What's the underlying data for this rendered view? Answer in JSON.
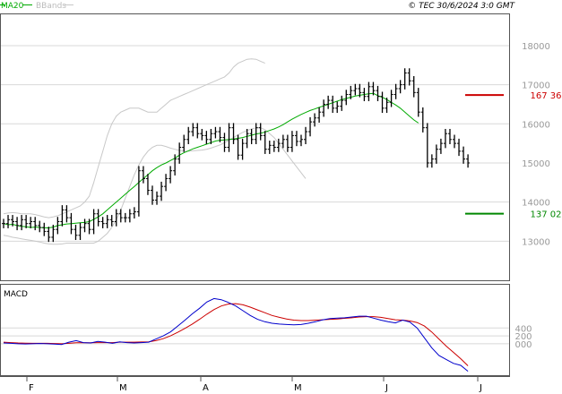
{
  "header": {
    "legend_ma": "MA20",
    "legend_bb": "BBands",
    "copyright": "© TEC 30/6/2024 3:0 GMT"
  },
  "colors": {
    "ma": "#00aa00",
    "bands": "#c8c8c8",
    "bar": "#000000",
    "resistance": "#cc0000",
    "support": "#008800",
    "macd": "#0000cc",
    "signal": "#cc0000",
    "grid": "#d8d8d8"
  },
  "chart_data": [
    {
      "type": "ohlc",
      "panel": "price",
      "ylim": [
        12000,
        18800
      ],
      "y_ticks": [
        "18000",
        "17000",
        "16000",
        "15000",
        "14000",
        "13000"
      ],
      "y_tick_values": [
        18000,
        17000,
        16000,
        15000,
        14000,
        13000
      ],
      "x_ticks": [
        "F",
        "M",
        "A",
        "M",
        "J",
        "J"
      ],
      "levels": [
        {
          "label": "167 36",
          "value": 16736,
          "color": "resistance"
        },
        {
          "label": "137 02",
          "value": 13702,
          "color": "support"
        }
      ],
      "closes": [
        13450,
        13550,
        13500,
        13400,
        13550,
        13450,
        13500,
        13400,
        13350,
        13250,
        13100,
        13300,
        13500,
        13800,
        13600,
        13300,
        13150,
        13350,
        13450,
        13300,
        13700,
        13500,
        13450,
        13550,
        13500,
        13700,
        13600,
        13600,
        13700,
        13750,
        14800,
        14600,
        14300,
        14050,
        14150,
        14400,
        14600,
        14800,
        15100,
        15400,
        15600,
        15800,
        15900,
        15750,
        15700,
        15600,
        15750,
        15800,
        15650,
        15400,
        15900,
        15600,
        15200,
        15500,
        15750,
        15600,
        15900,
        15700,
        15350,
        15450,
        15400,
        15500,
        15600,
        15400,
        15700,
        15550,
        15600,
        15800,
        16050,
        16150,
        16300,
        16500,
        16600,
        16400,
        16450,
        16600,
        16750,
        16850,
        16900,
        16800,
        16700,
        16950,
        16850,
        16700,
        16400,
        16550,
        16750,
        16900,
        17000,
        17300,
        17100,
        16800,
        16300,
        15900,
        15000,
        15100,
        15350,
        15500,
        15750,
        15600,
        15500,
        15300,
        15100,
        15000
      ],
      "ma20": [
        13450,
        13420,
        13430,
        13400,
        13380,
        13370,
        13350,
        13360,
        13350,
        13340,
        13340,
        13360,
        13400,
        13420,
        13440,
        13450,
        13460,
        13470,
        13480,
        13500,
        13560,
        13620,
        13700,
        13800,
        13900,
        14000,
        14100,
        14200,
        14300,
        14400,
        14500,
        14600,
        14700,
        14800,
        14880,
        14950,
        15000,
        15060,
        15120,
        15200,
        15260,
        15310,
        15360,
        15400,
        15440,
        15480,
        15520,
        15560,
        15580,
        15590,
        15600,
        15610,
        15630,
        15650,
        15680,
        15710,
        15740,
        15760,
        15790,
        15830,
        15870,
        15920,
        15980,
        16050,
        16120,
        16180,
        16240,
        16290,
        16340,
        16380,
        16420,
        16460,
        16500,
        16540,
        16580,
        16620,
        16650,
        16680,
        16710,
        16730,
        16750,
        16770,
        16780,
        16720,
        16680,
        16620,
        16550,
        16480,
        16400,
        16300,
        16200,
        16100,
        16020
      ],
      "bb_upper": [
        13700,
        13720,
        13730,
        13720,
        13700,
        13700,
        13700,
        13680,
        13650,
        13620,
        13600,
        13620,
        13650,
        13700,
        13750,
        13800,
        13850,
        13900,
        14000,
        14150,
        14500,
        14900,
        15300,
        15700,
        16000,
        16200,
        16300,
        16350,
        16400,
        16400,
        16400,
        16350,
        16300,
        16300,
        16300,
        16400,
        16500,
        16600,
        16650,
        16700,
        16750,
        16800,
        16850,
        16900,
        16950,
        17000,
        17050,
        17100,
        17150,
        17200,
        17300,
        17450,
        17550,
        17600,
        17650,
        17660,
        17650,
        17600,
        17550
      ],
      "bb_lower": [
        13150,
        13130,
        13100,
        13080,
        13060,
        13040,
        13020,
        13000,
        12980,
        12950,
        12930,
        12920,
        12920,
        12930,
        12950,
        12950,
        12950,
        12950,
        12950,
        12950,
        12950,
        13000,
        13100,
        13200,
        13350,
        13550,
        13800,
        14100,
        14400,
        14700,
        14950,
        15150,
        15300,
        15400,
        15450,
        15450,
        15420,
        15380,
        15350,
        15320,
        15300,
        15300,
        15310,
        15320,
        15330,
        15350,
        15380,
        15420,
        15460,
        15520,
        15580,
        15650,
        15720,
        15780,
        15830,
        15870,
        15900,
        15900,
        15850,
        15750,
        15650,
        15500,
        15350,
        15200,
        15050,
        14900,
        14750,
        14600
      ]
    },
    {
      "type": "line",
      "panel": "macd",
      "title": "MACD",
      "ylim": [
        -800,
        1500
      ],
      "y_ticks": [
        "400",
        "200",
        "000"
      ],
      "y_tick_values": [
        400,
        200,
        0
      ],
      "series": [
        {
          "color": "macd",
          "values": [
            20,
            10,
            0,
            -5,
            0,
            5,
            0,
            -10,
            -20,
            40,
            80,
            30,
            20,
            60,
            40,
            10,
            50,
            30,
            20,
            30,
            40,
            120,
            200,
            300,
            450,
            600,
            760,
            900,
            1060,
            1150,
            1120,
            1050,
            960,
            840,
            720,
            620,
            560,
            520,
            500,
            490,
            480,
            490,
            520,
            560,
            610,
            640,
            650,
            660,
            680,
            700,
            700,
            650,
            600,
            560,
            530,
            600,
            550,
            400,
            150,
            -100,
            -300,
            -400,
            -500,
            -550,
            -700
          ]
        },
        {
          "color": "signal",
          "values": [
            40,
            30,
            20,
            15,
            10,
            10,
            10,
            5,
            0,
            10,
            25,
            25,
            25,
            30,
            30,
            30,
            40,
            40,
            40,
            45,
            50,
            80,
            130,
            200,
            290,
            390,
            500,
            620,
            750,
            870,
            960,
            1010,
            1020,
            990,
            930,
            860,
            790,
            720,
            670,
            630,
            600,
            590,
            590,
            600,
            610,
            620,
            630,
            645,
            660,
            680,
            690,
            690,
            670,
            640,
            610,
            600,
            580,
            540,
            450,
            300,
            120,
            -60,
            -220,
            -380,
            -560
          ]
        }
      ]
    }
  ]
}
